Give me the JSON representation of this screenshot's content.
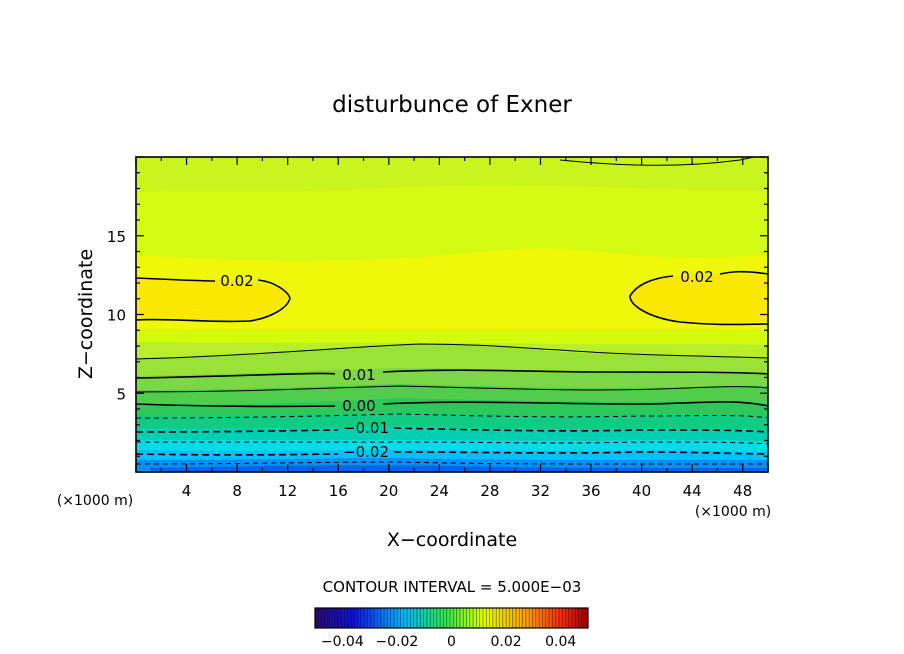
{
  "chart_data": {
    "type": "heatmap",
    "subtype": "filled-contour",
    "title": "disturbunce of Exner",
    "xlabel": "X−coordinate",
    "ylabel": "Z−coordinate",
    "x_unit_left": "(×1000 m)",
    "x_unit_right": "(×1000 m)",
    "xlim": [
      0,
      50
    ],
    "ylim": [
      0,
      20
    ],
    "x_ticks": [
      "4",
      "8",
      "12",
      "16",
      "20",
      "24",
      "28",
      "32",
      "36",
      "40",
      "44",
      "48"
    ],
    "y_ticks": [
      "5",
      "10",
      "15"
    ],
    "contour_interval_label": "CONTOUR INTERVAL = 5.000E−03",
    "contour_levels": [
      -0.025,
      -0.02,
      -0.015,
      -0.01,
      -0.005,
      0.0,
      0.005,
      0.01,
      0.015,
      0.02
    ],
    "contour_labels": [
      "0.02",
      "0.02",
      "0.01",
      "0.00",
      "−0.01",
      "−0.02"
    ],
    "approx_level_heights": [
      {
        "level": -0.025,
        "z": 0.6
      },
      {
        "level": -0.02,
        "z": 1.3
      },
      {
        "level": -0.015,
        "z": 2.3
      },
      {
        "level": -0.01,
        "z": 2.8
      },
      {
        "level": -0.005,
        "z": 3.8
      },
      {
        "level": 0.0,
        "z": 4.4
      },
      {
        "level": 0.005,
        "z": 5.0
      },
      {
        "level": 0.01,
        "z": 6.0
      },
      {
        "level": 0.015,
        "z": 7.2
      },
      {
        "level": 0.02,
        "z": 10.8
      }
    ],
    "colorbar": {
      "range": [
        -0.05,
        0.05
      ],
      "tick_labels": [
        "−0.04",
        "−0.02",
        "0",
        "0.02",
        "0.04"
      ],
      "colors": [
        "#2b0b6e",
        "#0000ff",
        "#00c8ff",
        "#2ee850",
        "#ffff00",
        "#ff4000",
        "#a00000"
      ]
    },
    "grid": false,
    "legend": "colorbar-bottom"
  }
}
